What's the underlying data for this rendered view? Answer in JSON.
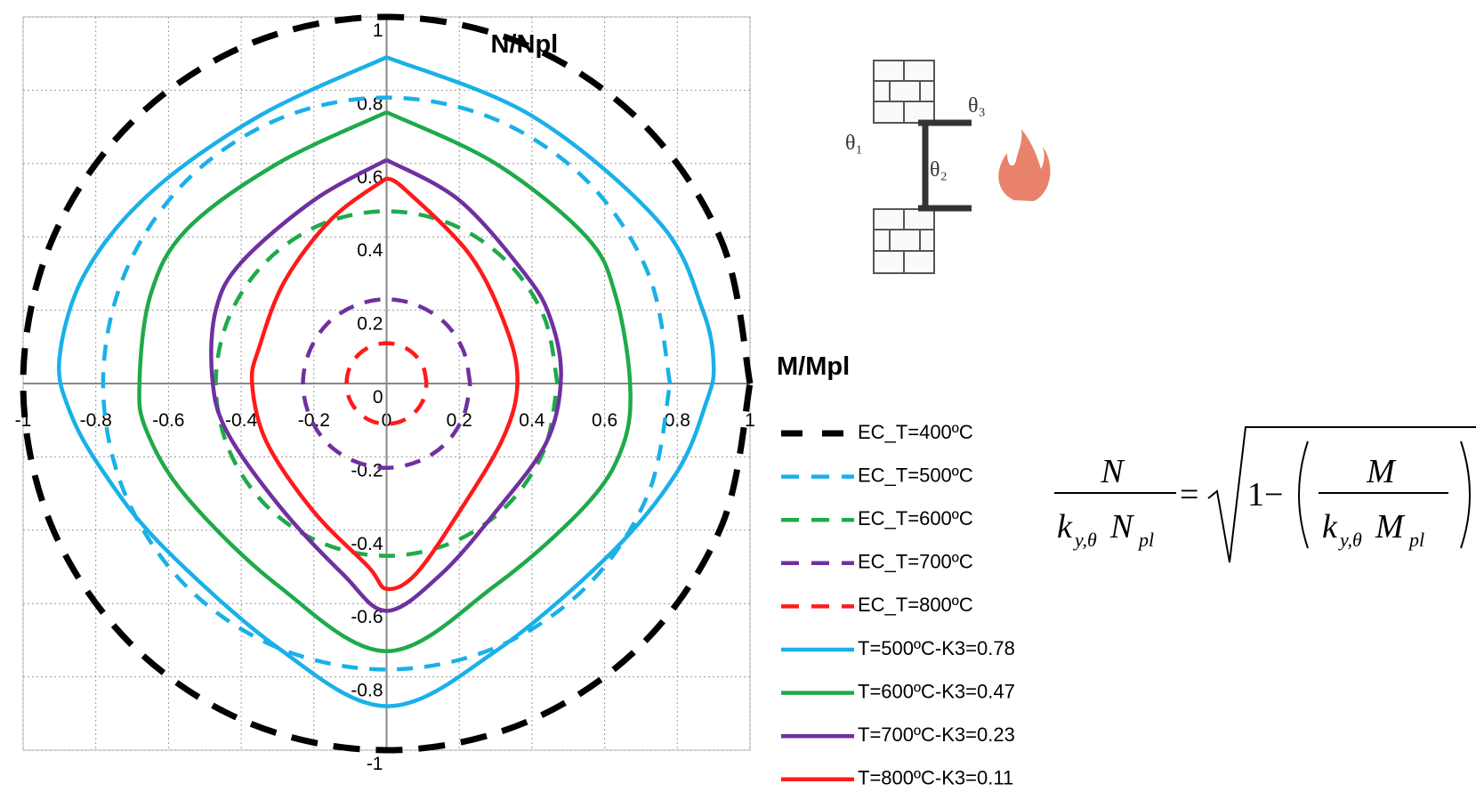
{
  "chart_data": {
    "type": "line",
    "xlabel": "M/Mpl",
    "ylabel": "N/Npl",
    "xlim": [
      -1,
      1
    ],
    "ylim": [
      -1,
      1
    ],
    "xticks": [
      -1,
      -0.8,
      -0.6,
      -0.4,
      -0.2,
      0,
      0.2,
      0.4,
      0.6,
      0.8,
      1
    ],
    "yticks": [
      -1,
      -0.8,
      -0.6,
      -0.4,
      -0.2,
      0,
      0.2,
      0.4,
      0.6,
      0.8,
      1
    ],
    "grid": true,
    "legend": "right",
    "series": [
      {
        "name": "EC_T=400ºC",
        "color": "#000000",
        "dashed": true,
        "x": [
          1,
          0.924,
          0.707,
          0.383,
          0,
          -0.383,
          -0.707,
          -0.924,
          -1,
          -0.924,
          -0.707,
          -0.383,
          0,
          0.383,
          0.707,
          0.924,
          1
        ],
        "y": [
          0,
          0.383,
          0.707,
          0.924,
          1,
          0.924,
          0.707,
          0.383,
          0,
          -0.383,
          -0.707,
          -0.924,
          -1,
          -0.924,
          -0.707,
          -0.383,
          0
        ]
      },
      {
        "name": "EC_T=500ºC",
        "color": "#1ab0e8",
        "dashed": true,
        "x": [
          0.78,
          0.721,
          0.552,
          0.298,
          0,
          -0.298,
          -0.552,
          -0.721,
          -0.78,
          -0.721,
          -0.552,
          -0.298,
          0,
          0.298,
          0.552,
          0.721,
          0.78
        ],
        "y": [
          0,
          0.298,
          0.552,
          0.721,
          0.78,
          0.721,
          0.552,
          0.298,
          0,
          -0.298,
          -0.552,
          -0.721,
          -0.78,
          -0.721,
          -0.552,
          -0.298,
          0
        ]
      },
      {
        "name": "EC_T=600ºC",
        "color": "#1faa4a",
        "dashed": true,
        "x": [
          0.47,
          0.434,
          0.332,
          0.18,
          0,
          -0.18,
          -0.332,
          -0.434,
          -0.47,
          -0.434,
          -0.332,
          -0.18,
          0,
          0.18,
          0.332,
          0.434,
          0.47
        ],
        "y": [
          0,
          0.18,
          0.332,
          0.434,
          0.47,
          0.434,
          0.332,
          0.18,
          0,
          -0.18,
          -0.332,
          -0.434,
          -0.47,
          -0.434,
          -0.332,
          -0.18,
          0
        ]
      },
      {
        "name": "EC_T=700ºC",
        "color": "#7030a0",
        "dashed": true,
        "x": [
          0.23,
          0.212,
          0.163,
          0.088,
          0,
          -0.088,
          -0.163,
          -0.212,
          -0.23,
          -0.212,
          -0.163,
          -0.088,
          0,
          0.088,
          0.163,
          0.212,
          0.23
        ],
        "y": [
          0,
          0.088,
          0.163,
          0.212,
          0.23,
          0.212,
          0.163,
          0.088,
          0,
          -0.088,
          -0.163,
          -0.212,
          -0.23,
          -0.212,
          -0.163,
          -0.088,
          0
        ]
      },
      {
        "name": "EC_T=800ºC",
        "color": "#ff1a1a",
        "dashed": true,
        "x": [
          0.11,
          0.102,
          0.078,
          0.042,
          0,
          -0.042,
          -0.078,
          -0.102,
          -0.11,
          -0.102,
          -0.078,
          -0.042,
          0,
          0.042,
          0.078,
          0.102,
          0.11
        ],
        "y": [
          0,
          0.042,
          0.078,
          0.102,
          0.11,
          0.102,
          0.078,
          0.042,
          0,
          -0.042,
          -0.078,
          -0.102,
          -0.11,
          -0.102,
          -0.078,
          -0.042,
          0
        ]
      },
      {
        "name": "T=500ºC-K3=0.78",
        "color": "#1ab0e8",
        "dashed": false,
        "x": [
          0,
          -0.35,
          -0.65,
          -0.83,
          -0.9,
          -0.87,
          -0.78,
          -0.62,
          -0.3,
          0,
          0.3,
          0.62,
          0.8,
          0.88,
          0.9,
          0.87,
          0.75,
          0.4,
          0
        ],
        "y": [
          0.89,
          0.73,
          0.52,
          0.3,
          0.07,
          -0.08,
          -0.24,
          -0.44,
          -0.72,
          -0.88,
          -0.73,
          -0.46,
          -0.24,
          -0.05,
          0.05,
          0.2,
          0.44,
          0.73,
          0.89
        ]
      },
      {
        "name": "T=600ºC-K3=0.47",
        "color": "#1faa4a",
        "dashed": false,
        "x": [
          0,
          -0.3,
          -0.55,
          -0.65,
          -0.68,
          -0.66,
          -0.55,
          -0.3,
          0,
          0.3,
          0.55,
          0.65,
          0.67,
          0.63,
          0.55,
          0.3,
          0
        ],
        "y": [
          0.74,
          0.6,
          0.42,
          0.24,
          0,
          -0.13,
          -0.31,
          -0.55,
          -0.73,
          -0.55,
          -0.33,
          -0.17,
          0,
          0.24,
          0.4,
          0.6,
          0.74
        ]
      },
      {
        "name": "T=700ºC-K3=0.23",
        "color": "#7030a0",
        "dashed": false,
        "x": [
          0,
          -0.2,
          -0.4,
          -0.47,
          -0.48,
          -0.44,
          -0.29,
          -0.12,
          0,
          0.15,
          0.3,
          0.44,
          0.48,
          0.45,
          0.38,
          0.2,
          0
        ],
        "y": [
          0.61,
          0.5,
          0.33,
          0.2,
          0.02,
          -0.13,
          -0.34,
          -0.52,
          -0.62,
          -0.52,
          -0.35,
          -0.16,
          0.02,
          0.18,
          0.3,
          0.5,
          0.61
        ]
      },
      {
        "name": "T=800ºC-K3=0.11",
        "color": "#ff1a1a",
        "dashed": false,
        "x": [
          0,
          -0.15,
          -0.28,
          -0.35,
          -0.37,
          -0.33,
          -0.2,
          -0.05,
          0,
          0.08,
          0.2,
          0.32,
          0.36,
          0.33,
          0.23,
          0.05,
          0
        ],
        "y": [
          0.56,
          0.45,
          0.28,
          0.1,
          0,
          -0.16,
          -0.35,
          -0.5,
          -0.56,
          -0.52,
          -0.35,
          -0.15,
          0,
          0.15,
          0.35,
          0.53,
          0.56
        ]
      }
    ],
    "diagram_labels": [
      "θ₁",
      "θ₂",
      "θ₃"
    ],
    "formula": {
      "lhs_num": "N",
      "lhs_den": [
        "k",
        "y,θ",
        "N",
        "pl"
      ],
      "equals": "=",
      "rhs_one": "1−",
      "rhs_num": "M",
      "rhs_den": [
        "k",
        "y,θ",
        "M",
        "pl"
      ]
    }
  }
}
